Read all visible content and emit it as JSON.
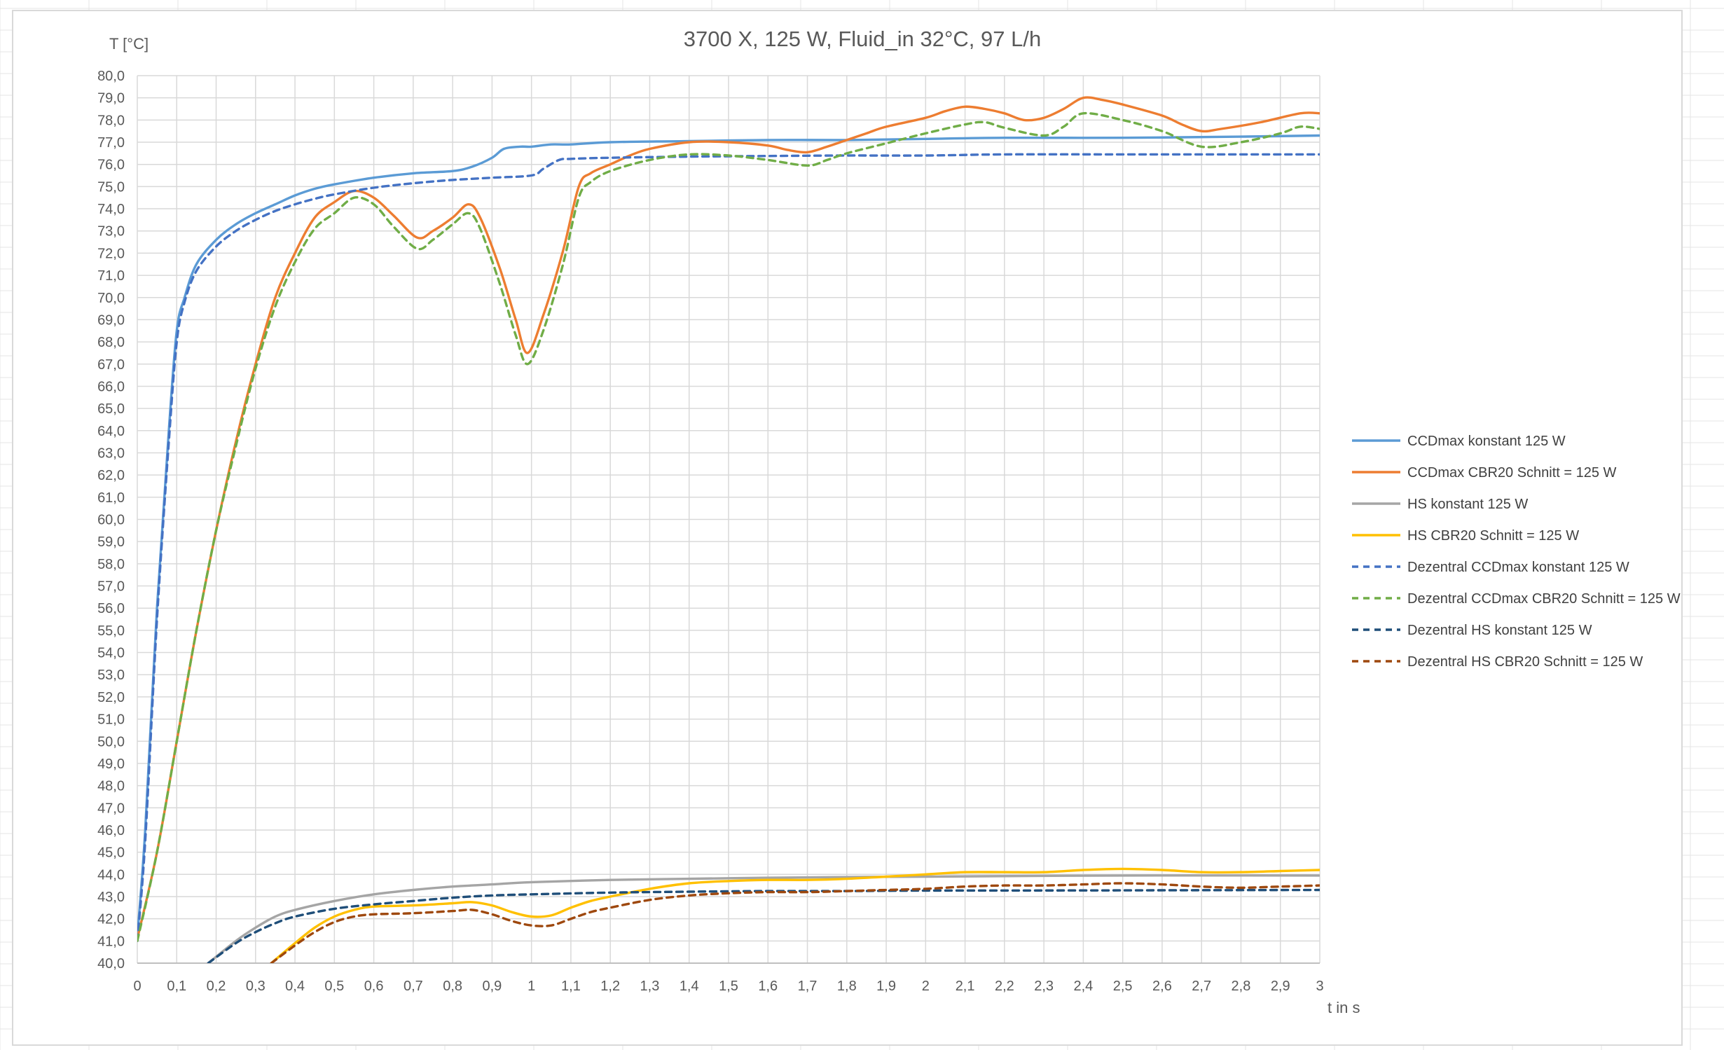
{
  "chart_data": {
    "type": "line",
    "title": "3700 X, 125 W, Fluid_in 32°C, 97 L/h",
    "ylabel": "T [°C]",
    "xlabel": "t in s",
    "xlim": [
      0,
      3
    ],
    "ylim": [
      40,
      80
    ],
    "x_ticks": [
      "0",
      "0,1",
      "0,2",
      "0,3",
      "0,4",
      "0,5",
      "0,6",
      "0,7",
      "0,8",
      "0,9",
      "1",
      "1,1",
      "1,2",
      "1,3",
      "1,4",
      "1,5",
      "1,6",
      "1,7",
      "1,8",
      "1,9",
      "2",
      "2,1",
      "2,2",
      "2,3",
      "2,4",
      "2,5",
      "2,6",
      "2,7",
      "2,8",
      "2,9",
      "3"
    ],
    "y_ticks": [
      "40,0",
      "41,0",
      "42,0",
      "43,0",
      "44,0",
      "45,0",
      "46,0",
      "47,0",
      "48,0",
      "49,0",
      "50,0",
      "51,0",
      "52,0",
      "53,0",
      "54,0",
      "55,0",
      "56,0",
      "57,0",
      "58,0",
      "59,0",
      "60,0",
      "61,0",
      "62,0",
      "63,0",
      "64,0",
      "65,0",
      "66,0",
      "67,0",
      "68,0",
      "69,0",
      "70,0",
      "71,0",
      "72,0",
      "73,0",
      "74,0",
      "75,0",
      "76,0",
      "77,0",
      "78,0",
      "79,0",
      "80,0"
    ],
    "grid": true,
    "legend_position": "right",
    "series": [
      {
        "name": "CCDmax konstant 125 W",
        "color": "#5b9bd5",
        "dash": "solid",
        "points": [
          [
            0,
            41.2
          ],
          [
            0.02,
            46
          ],
          [
            0.05,
            56
          ],
          [
            0.08,
            64
          ],
          [
            0.1,
            68.5
          ],
          [
            0.12,
            70
          ],
          [
            0.15,
            71.5
          ],
          [
            0.2,
            72.6
          ],
          [
            0.25,
            73.3
          ],
          [
            0.3,
            73.8
          ],
          [
            0.35,
            74.2
          ],
          [
            0.4,
            74.6
          ],
          [
            0.45,
            74.9
          ],
          [
            0.5,
            75.1
          ],
          [
            0.6,
            75.4
          ],
          [
            0.7,
            75.6
          ],
          [
            0.8,
            75.7
          ],
          [
            0.85,
            75.9
          ],
          [
            0.9,
            76.3
          ],
          [
            0.93,
            76.7
          ],
          [
            0.97,
            76.8
          ],
          [
            1.0,
            76.8
          ],
          [
            1.05,
            76.9
          ],
          [
            1.1,
            76.9
          ],
          [
            1.2,
            77.0
          ],
          [
            1.4,
            77.05
          ],
          [
            1.6,
            77.1
          ],
          [
            1.8,
            77.1
          ],
          [
            2.0,
            77.15
          ],
          [
            2.2,
            77.2
          ],
          [
            2.5,
            77.2
          ],
          [
            2.8,
            77.25
          ],
          [
            3.0,
            77.3
          ]
        ]
      },
      {
        "name": "CCDmax CBR20 Schnitt = 125 W",
        "color": "#ed7d31",
        "dash": "solid",
        "points": [
          [
            0,
            41.1
          ],
          [
            0.05,
            45
          ],
          [
            0.1,
            50
          ],
          [
            0.15,
            55
          ],
          [
            0.2,
            59.5
          ],
          [
            0.25,
            63.5
          ],
          [
            0.3,
            67
          ],
          [
            0.35,
            70
          ],
          [
            0.4,
            72
          ],
          [
            0.45,
            73.6
          ],
          [
            0.5,
            74.3
          ],
          [
            0.55,
            74.8
          ],
          [
            0.6,
            74.5
          ],
          [
            0.65,
            73.7
          ],
          [
            0.71,
            72.7
          ],
          [
            0.75,
            73
          ],
          [
            0.8,
            73.6
          ],
          [
            0.84,
            74.2
          ],
          [
            0.87,
            73.6
          ],
          [
            0.92,
            71.3
          ],
          [
            0.96,
            69
          ],
          [
            0.99,
            67.5
          ],
          [
            1.03,
            69.2
          ],
          [
            1.08,
            72.1
          ],
          [
            1.12,
            75
          ],
          [
            1.15,
            75.6
          ],
          [
            1.2,
            76
          ],
          [
            1.25,
            76.4
          ],
          [
            1.3,
            76.7
          ],
          [
            1.4,
            77
          ],
          [
            1.5,
            77
          ],
          [
            1.6,
            76.85
          ],
          [
            1.65,
            76.65
          ],
          [
            1.7,
            76.55
          ],
          [
            1.75,
            76.8
          ],
          [
            1.8,
            77.1
          ],
          [
            1.85,
            77.4
          ],
          [
            1.9,
            77.7
          ],
          [
            2.0,
            78.1
          ],
          [
            2.05,
            78.4
          ],
          [
            2.1,
            78.6
          ],
          [
            2.15,
            78.5
          ],
          [
            2.2,
            78.3
          ],
          [
            2.25,
            78
          ],
          [
            2.3,
            78.1
          ],
          [
            2.35,
            78.5
          ],
          [
            2.4,
            79
          ],
          [
            2.45,
            78.9
          ],
          [
            2.5,
            78.7
          ],
          [
            2.6,
            78.2
          ],
          [
            2.65,
            77.8
          ],
          [
            2.7,
            77.5
          ],
          [
            2.75,
            77.6
          ],
          [
            2.85,
            77.9
          ],
          [
            2.95,
            78.3
          ],
          [
            3.0,
            78.3
          ]
        ]
      },
      {
        "name": "HS konstant 125 W",
        "color": "#a5a5a5",
        "dash": "solid",
        "points": [
          [
            0.18,
            40
          ],
          [
            0.25,
            41
          ],
          [
            0.3,
            41.6
          ],
          [
            0.35,
            42.1
          ],
          [
            0.4,
            42.4
          ],
          [
            0.5,
            42.8
          ],
          [
            0.6,
            43.1
          ],
          [
            0.7,
            43.3
          ],
          [
            0.8,
            43.45
          ],
          [
            0.9,
            43.55
          ],
          [
            1.0,
            43.65
          ],
          [
            1.2,
            43.75
          ],
          [
            1.4,
            43.8
          ],
          [
            1.6,
            43.85
          ],
          [
            1.8,
            43.88
          ],
          [
            2.0,
            43.9
          ],
          [
            2.5,
            43.95
          ],
          [
            3.0,
            43.95
          ]
        ]
      },
      {
        "name": "HS CBR20 Schnitt = 125 W",
        "color": "#ffc000",
        "dash": "solid",
        "points": [
          [
            0.34,
            40
          ],
          [
            0.4,
            40.9
          ],
          [
            0.45,
            41.6
          ],
          [
            0.5,
            42.1
          ],
          [
            0.55,
            42.4
          ],
          [
            0.6,
            42.55
          ],
          [
            0.7,
            42.6
          ],
          [
            0.8,
            42.7
          ],
          [
            0.85,
            42.75
          ],
          [
            0.9,
            42.6
          ],
          [
            0.95,
            42.3
          ],
          [
            1.0,
            42.1
          ],
          [
            1.05,
            42.15
          ],
          [
            1.1,
            42.5
          ],
          [
            1.15,
            42.8
          ],
          [
            1.2,
            43
          ],
          [
            1.3,
            43.35
          ],
          [
            1.4,
            43.6
          ],
          [
            1.5,
            43.7
          ],
          [
            1.6,
            43.75
          ],
          [
            1.7,
            43.75
          ],
          [
            1.8,
            43.8
          ],
          [
            1.9,
            43.9
          ],
          [
            2.0,
            44
          ],
          [
            2.1,
            44.1
          ],
          [
            2.2,
            44.1
          ],
          [
            2.3,
            44.1
          ],
          [
            2.4,
            44.2
          ],
          [
            2.5,
            44.25
          ],
          [
            2.6,
            44.2
          ],
          [
            2.7,
            44.1
          ],
          [
            2.8,
            44.1
          ],
          [
            2.9,
            44.15
          ],
          [
            3.0,
            44.2
          ]
        ]
      },
      {
        "name": "Dezentral CCDmax konstant 125 W",
        "color": "#4472c4",
        "dash": "dashed",
        "points": [
          [
            0,
            41
          ],
          [
            0.02,
            45.5
          ],
          [
            0.05,
            55.5
          ],
          [
            0.08,
            63.5
          ],
          [
            0.1,
            68
          ],
          [
            0.12,
            69.8
          ],
          [
            0.15,
            71.2
          ],
          [
            0.2,
            72.3
          ],
          [
            0.25,
            73
          ],
          [
            0.3,
            73.5
          ],
          [
            0.35,
            73.9
          ],
          [
            0.4,
            74.2
          ],
          [
            0.45,
            74.45
          ],
          [
            0.5,
            74.65
          ],
          [
            0.6,
            74.95
          ],
          [
            0.7,
            75.15
          ],
          [
            0.8,
            75.3
          ],
          [
            0.9,
            75.4
          ],
          [
            1.0,
            75.5
          ],
          [
            1.03,
            75.8
          ],
          [
            1.07,
            76.2
          ],
          [
            1.1,
            76.25
          ],
          [
            1.2,
            76.3
          ],
          [
            1.4,
            76.35
          ],
          [
            1.6,
            76.38
          ],
          [
            1.8,
            76.4
          ],
          [
            2.0,
            76.4
          ],
          [
            2.2,
            76.45
          ],
          [
            2.5,
            76.45
          ],
          [
            3.0,
            76.45
          ]
        ]
      },
      {
        "name": "Dezentral CCDmax CBR20 Schnitt = 125 W",
        "color": "#70ad47",
        "dash": "dashed",
        "points": [
          [
            0,
            41
          ],
          [
            0.05,
            45
          ],
          [
            0.1,
            50
          ],
          [
            0.15,
            55
          ],
          [
            0.2,
            59.5
          ],
          [
            0.25,
            63.3
          ],
          [
            0.3,
            66.8
          ],
          [
            0.35,
            69.6
          ],
          [
            0.4,
            71.6
          ],
          [
            0.45,
            73.1
          ],
          [
            0.5,
            73.8
          ],
          [
            0.55,
            74.5
          ],
          [
            0.6,
            74.2
          ],
          [
            0.65,
            73.2
          ],
          [
            0.71,
            72.2
          ],
          [
            0.75,
            72.6
          ],
          [
            0.8,
            73.3
          ],
          [
            0.84,
            73.8
          ],
          [
            0.87,
            73.1
          ],
          [
            0.92,
            70.6
          ],
          [
            0.96,
            68.3
          ],
          [
            0.99,
            67
          ],
          [
            1.03,
            68.5
          ],
          [
            1.08,
            71.5
          ],
          [
            1.12,
            74.5
          ],
          [
            1.15,
            75.2
          ],
          [
            1.2,
            75.7
          ],
          [
            1.3,
            76.2
          ],
          [
            1.4,
            76.45
          ],
          [
            1.5,
            76.4
          ],
          [
            1.6,
            76.2
          ],
          [
            1.7,
            75.95
          ],
          [
            1.75,
            76.2
          ],
          [
            1.8,
            76.5
          ],
          [
            1.9,
            76.95
          ],
          [
            2.0,
            77.4
          ],
          [
            2.1,
            77.8
          ],
          [
            2.15,
            77.9
          ],
          [
            2.2,
            77.65
          ],
          [
            2.3,
            77.3
          ],
          [
            2.35,
            77.7
          ],
          [
            2.4,
            78.3
          ],
          [
            2.5,
            78
          ],
          [
            2.6,
            77.5
          ],
          [
            2.7,
            76.8
          ],
          [
            2.8,
            77
          ],
          [
            2.9,
            77.4
          ],
          [
            2.95,
            77.7
          ],
          [
            3.0,
            77.6
          ]
        ]
      },
      {
        "name": "Dezentral HS konstant 125 W",
        "color": "#1f4e79",
        "dash": "dashed",
        "points": [
          [
            0.18,
            40
          ],
          [
            0.25,
            40.9
          ],
          [
            0.3,
            41.4
          ],
          [
            0.35,
            41.8
          ],
          [
            0.4,
            42.1
          ],
          [
            0.5,
            42.45
          ],
          [
            0.6,
            42.65
          ],
          [
            0.7,
            42.8
          ],
          [
            0.8,
            42.95
          ],
          [
            0.9,
            43.05
          ],
          [
            1.0,
            43.1
          ],
          [
            1.2,
            43.18
          ],
          [
            1.4,
            43.22
          ],
          [
            1.6,
            43.25
          ],
          [
            1.8,
            43.25
          ],
          [
            2.0,
            43.27
          ],
          [
            2.5,
            43.28
          ],
          [
            3.0,
            43.3
          ]
        ]
      },
      {
        "name": "Dezentral HS CBR20 Schnitt = 125 W",
        "color": "#9e480e",
        "dash": "dashed",
        "points": [
          [
            0.34,
            40
          ],
          [
            0.4,
            40.8
          ],
          [
            0.45,
            41.4
          ],
          [
            0.5,
            41.85
          ],
          [
            0.55,
            42.1
          ],
          [
            0.6,
            42.2
          ],
          [
            0.7,
            42.25
          ],
          [
            0.8,
            42.35
          ],
          [
            0.85,
            42.4
          ],
          [
            0.9,
            42.2
          ],
          [
            0.95,
            41.9
          ],
          [
            1.0,
            41.7
          ],
          [
            1.05,
            41.7
          ],
          [
            1.1,
            42.0
          ],
          [
            1.15,
            42.3
          ],
          [
            1.2,
            42.5
          ],
          [
            1.3,
            42.85
          ],
          [
            1.4,
            43.05
          ],
          [
            1.5,
            43.15
          ],
          [
            1.6,
            43.2
          ],
          [
            1.7,
            43.2
          ],
          [
            1.8,
            43.25
          ],
          [
            1.9,
            43.3
          ],
          [
            2.0,
            43.35
          ],
          [
            2.1,
            43.45
          ],
          [
            2.2,
            43.5
          ],
          [
            2.3,
            43.5
          ],
          [
            2.4,
            43.55
          ],
          [
            2.5,
            43.6
          ],
          [
            2.6,
            43.55
          ],
          [
            2.7,
            43.45
          ],
          [
            2.8,
            43.4
          ],
          [
            2.9,
            43.45
          ],
          [
            3.0,
            43.5
          ]
        ]
      }
    ]
  }
}
